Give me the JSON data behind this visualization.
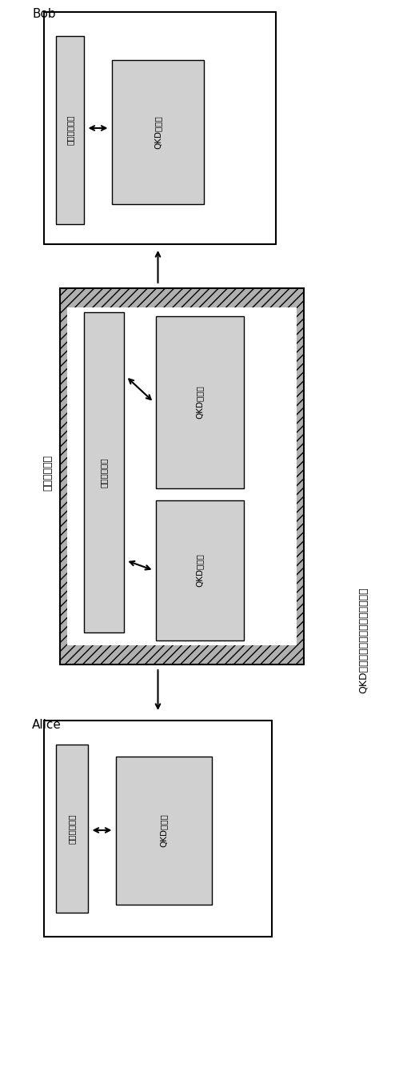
{
  "bg_color": "#ffffff",
  "title_text": "QKD的受信任的节点模型的一般描述",
  "label_bob": "Bob",
  "label_alice": "Alice",
  "label_trusted_node": "受信任的节点",
  "label_key_mgmt": "密鑰管理系统",
  "label_qkd_receiver": "QKD接收器",
  "label_qkd_transmitter": "QKD发射器",
  "box_edge_color": "#000000",
  "box_face_color": "#ffffff",
  "inner_box_face_color": "#d8d8d8"
}
